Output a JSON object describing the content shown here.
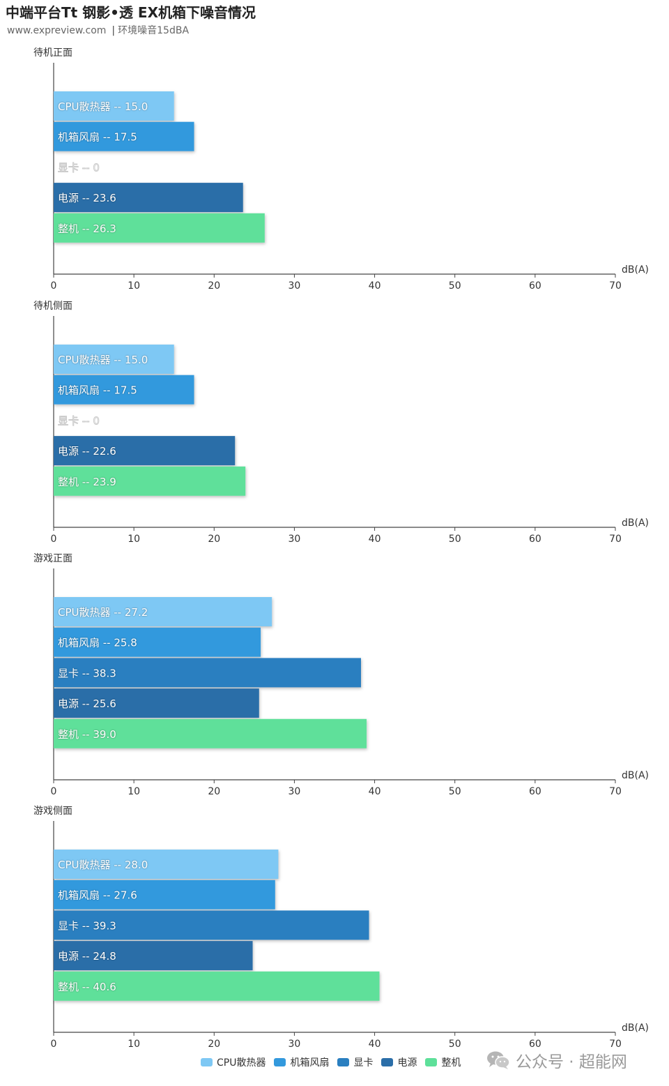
{
  "header": {
    "title": "中端平台Tt 钢影•透 EX机箱下噪音情况",
    "source": "www.expreview.com",
    "note": "环境噪音15dBA"
  },
  "legend": [
    {
      "name": "CPU散热器",
      "color": "#7ec8f4"
    },
    {
      "name": "机箱风扇",
      "color": "#3399dd"
    },
    {
      "name": "显卡",
      "color": "#2a7fc0"
    },
    {
      "name": "电源",
      "color": "#2b6ea8"
    },
    {
      "name": "整机",
      "color": "#5ee09a"
    }
  ],
  "watermark": {
    "text": "公众号 · 超能网",
    "icon": "wechat-icon"
  },
  "chart_data": [
    {
      "type": "bar",
      "orientation": "horizontal",
      "title": "待机正面",
      "xlabel": "dB(A)",
      "xlim": [
        0,
        70
      ],
      "ticks": [
        0,
        10,
        20,
        30,
        40,
        50,
        60,
        70
      ],
      "categories": [
        "CPU散热器",
        "机箱风扇",
        "显卡",
        "电源",
        "整机"
      ],
      "values": [
        15.0,
        17.5,
        0,
        23.6,
        26.3
      ],
      "labels": [
        "CPU散热器 -- 15.0",
        "机箱风扇 -- 17.5",
        "显卡 -- 0",
        "电源 -- 23.6",
        "整机 -- 26.3"
      ]
    },
    {
      "type": "bar",
      "orientation": "horizontal",
      "title": "待机侧面",
      "xlabel": "dB(A)",
      "xlim": [
        0,
        70
      ],
      "ticks": [
        0,
        10,
        20,
        30,
        40,
        50,
        60,
        70
      ],
      "categories": [
        "CPU散热器",
        "机箱风扇",
        "显卡",
        "电源",
        "整机"
      ],
      "values": [
        15.0,
        17.5,
        0,
        22.6,
        23.9
      ],
      "labels": [
        "CPU散热器 -- 15.0",
        "机箱风扇 -- 17.5",
        "显卡 -- 0",
        "电源 -- 22.6",
        "整机 -- 23.9"
      ]
    },
    {
      "type": "bar",
      "orientation": "horizontal",
      "title": "游戏正面",
      "xlabel": "dB(A)",
      "xlim": [
        0,
        70
      ],
      "ticks": [
        0,
        10,
        20,
        30,
        40,
        50,
        60,
        70
      ],
      "categories": [
        "CPU散热器",
        "机箱风扇",
        "显卡",
        "电源",
        "整机"
      ],
      "values": [
        27.2,
        25.8,
        38.3,
        25.6,
        39.0
      ],
      "labels": [
        "CPU散热器 -- 27.2",
        "机箱风扇 -- 25.8",
        "显卡 -- 38.3",
        "电源 -- 25.6",
        "整机 -- 39.0"
      ]
    },
    {
      "type": "bar",
      "orientation": "horizontal",
      "title": "游戏侧面",
      "xlabel": "dB(A)",
      "xlim": [
        0,
        70
      ],
      "ticks": [
        0,
        10,
        20,
        30,
        40,
        50,
        60,
        70
      ],
      "categories": [
        "CPU散热器",
        "机箱风扇",
        "显卡",
        "电源",
        "整机"
      ],
      "values": [
        28.0,
        27.6,
        39.3,
        24.8,
        40.6
      ],
      "labels": [
        "CPU散热器 -- 28.0",
        "机箱风扇 -- 27.6",
        "显卡 -- 39.3",
        "电源 -- 24.8",
        "整机 -- 40.6"
      ]
    }
  ]
}
